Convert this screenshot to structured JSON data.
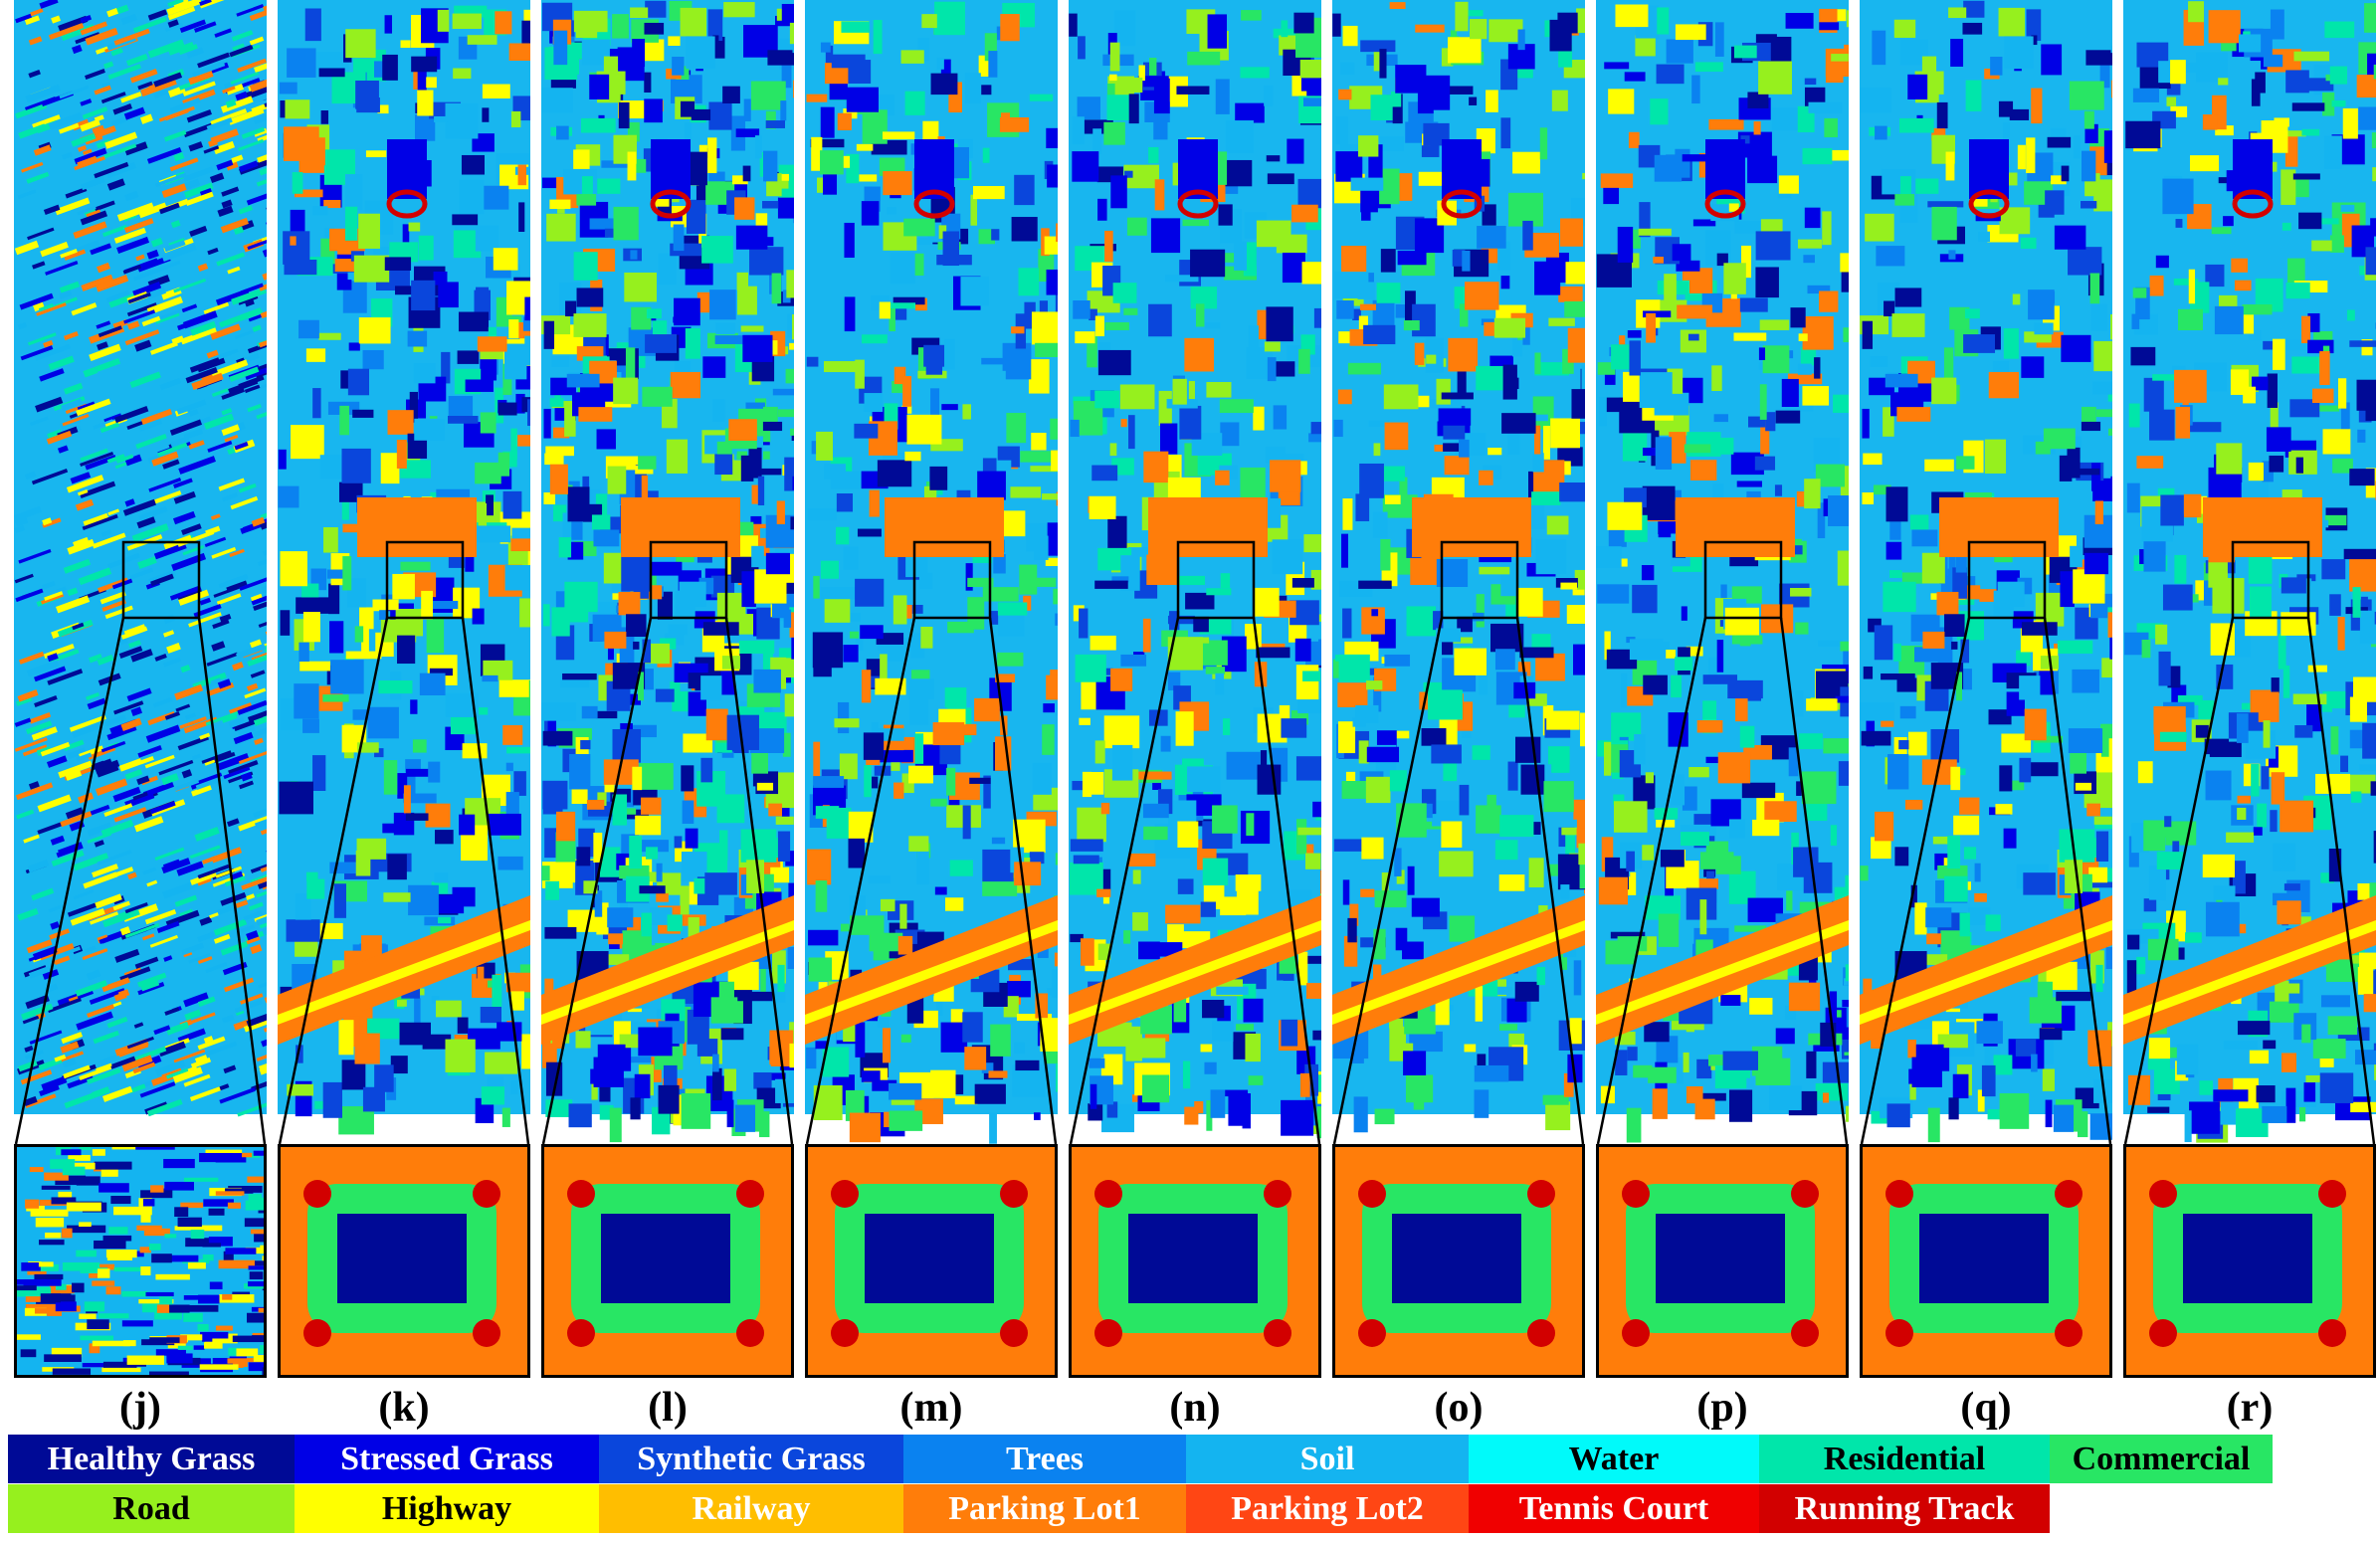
{
  "panels": [
    {
      "id": "j",
      "label": "(j)",
      "style": "noise"
    },
    {
      "id": "k",
      "label": "(k)",
      "style": "map"
    },
    {
      "id": "l",
      "label": "(l)",
      "style": "map-noisy"
    },
    {
      "id": "m",
      "label": "(m)",
      "style": "map"
    },
    {
      "id": "n",
      "label": "(n)",
      "style": "map"
    },
    {
      "id": "o",
      "label": "(o)",
      "style": "map"
    },
    {
      "id": "p",
      "label": "(p)",
      "style": "map"
    },
    {
      "id": "q",
      "label": "(q)",
      "style": "map"
    },
    {
      "id": "r",
      "label": "(r)",
      "style": "map-smooth"
    }
  ],
  "legend": [
    {
      "label": "Healthy Grass",
      "color": "#000a96",
      "text_color": "#ffffff"
    },
    {
      "label": "Stressed Grass",
      "color": "#0000e6",
      "text_color": "#ffffff"
    },
    {
      "label": "Synthetic Grass",
      "color": "#0a46dc",
      "text_color": "#ffffff"
    },
    {
      "label": "Trees",
      "color": "#0a82f0",
      "text_color": "#ffffff"
    },
    {
      "label": "Soil",
      "color": "#14b4f0",
      "text_color": "#ffffff"
    },
    {
      "label": "Water",
      "color": "#00fafa",
      "text_color": "#000000"
    },
    {
      "label": "Residential",
      "color": "#00e6aa",
      "text_color": "#000000"
    },
    {
      "label": "Commercial",
      "color": "#28e664",
      "text_color": "#000000"
    },
    {
      "label": "Road",
      "color": "#96f01e",
      "text_color": "#000000"
    },
    {
      "label": "Highway",
      "color": "#ffff00",
      "text_color": "#000000"
    },
    {
      "label": "Railway",
      "color": "#ffbe00",
      "text_color": "#ffffff"
    },
    {
      "label": "Parking Lot1",
      "color": "#ff7d0a",
      "text_color": "#ffffff"
    },
    {
      "label": "Parking Lot2",
      "color": "#ff4614",
      "text_color": "#ffffff"
    },
    {
      "label": "Tennis Court",
      "color": "#f00000",
      "text_color": "#ffffff"
    },
    {
      "label": "Running Track",
      "color": "#d20000",
      "text_color": "#ffffff"
    }
  ]
}
